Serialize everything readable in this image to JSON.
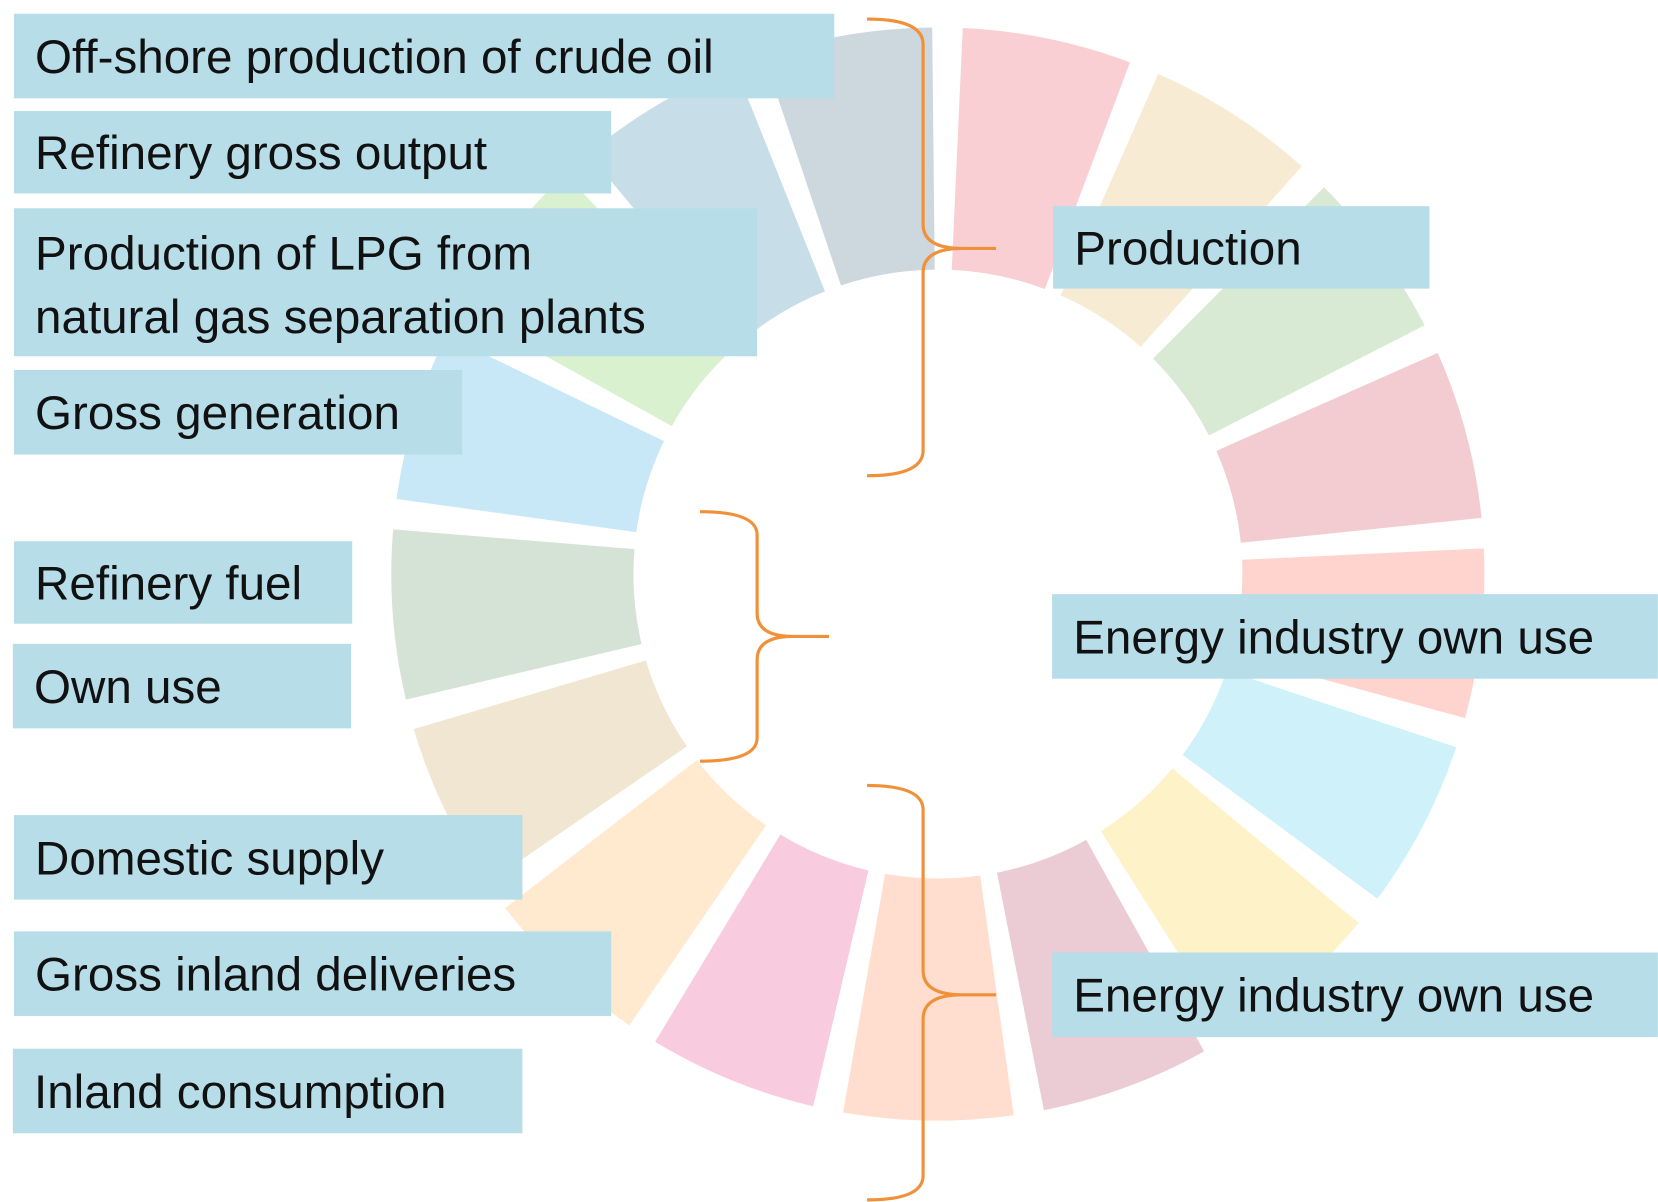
{
  "left_labels": [
    [
      "Off-shore production of crude oil"
    ],
    [
      "Refinery gross output"
    ],
    [
      "Production of LPG from",
      "natural gas separation plants"
    ],
    [
      "Gross generation"
    ],
    [
      "Refinery fuel"
    ],
    [
      "Own use"
    ],
    [
      "Domestic supply"
    ],
    [
      "Gross inland deliveries"
    ],
    [
      "Inland consumption"
    ]
  ],
  "right_labels": [
    "Production",
    "Energy industry own use",
    "Energy industry own use"
  ]
}
